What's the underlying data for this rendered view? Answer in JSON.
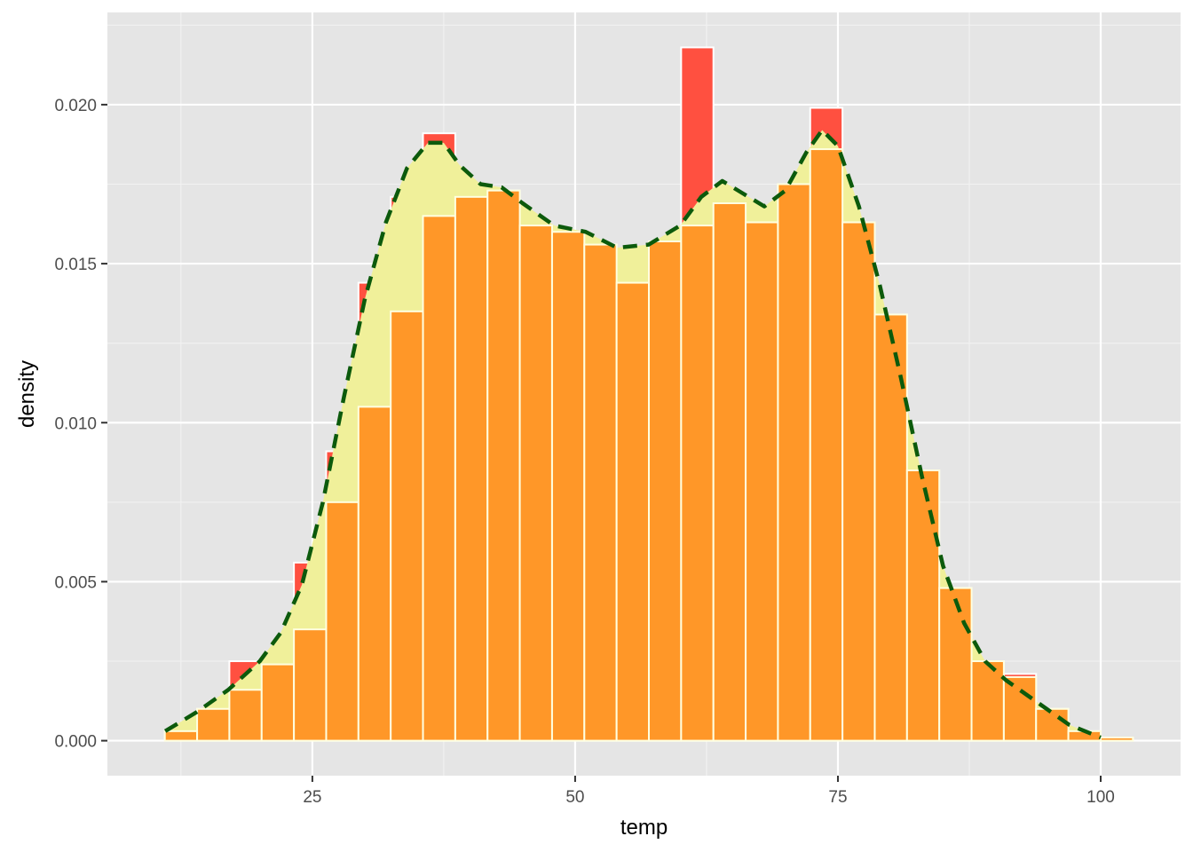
{
  "chart_data": {
    "type": "bar",
    "xlabel": "temp",
    "ylabel": "density",
    "xlim": [
      5.5,
      107.6
    ],
    "ylim": [
      -0.0011,
      0.0229
    ],
    "x_ticks": [
      25,
      50,
      75,
      100
    ],
    "x_tick_labels": [
      "25",
      "50",
      "75",
      "100"
    ],
    "y_ticks": [
      0.0,
      0.005,
      0.01,
      0.015,
      0.02
    ],
    "y_tick_labels": [
      "0.000",
      "0.005",
      "0.010",
      "0.015",
      "0.020"
    ],
    "grid": true,
    "legend": "none",
    "bin_width": 3.07,
    "x_first_bin_center": 12.5,
    "series": [
      {
        "type": "histogram",
        "fill": "#ff5040",
        "outline": "#ffffff",
        "values": [
          0.0003,
          0.001,
          0.0025,
          0.0024,
          0.0056,
          0.0091,
          0.0144,
          0.0171,
          0.0191,
          0.0172,
          0.0173,
          0.0162,
          0.016,
          0.0156,
          0.0144,
          0.0157,
          0.0218,
          0.0169,
          0.0163,
          0.0175,
          0.0199,
          0.0163,
          0.0134,
          0.0085,
          0.0048,
          0.0025,
          0.0021,
          0.001,
          0.0003,
          0.0001
        ]
      },
      {
        "type": "density-area",
        "fill": "#f0f09a",
        "x": [
          11.0,
          14.0,
          17.0,
          20.0,
          22.0,
          24.0,
          26.0,
          28.0,
          30.0,
          32.0,
          34.0,
          36.0,
          37.5,
          39.0,
          41.0,
          43.0,
          45.0,
          48.0,
          51.0,
          54.0,
          57.0,
          60.0,
          62.0,
          64.0,
          66.0,
          68.0,
          70.0,
          72.0,
          73.5,
          75.0,
          77.0,
          79.0,
          81.0,
          83.0,
          85.0,
          87.0,
          89.0,
          91.0,
          94.0,
          97.0,
          100.0
        ],
        "y": [
          0.0003,
          0.0009,
          0.0016,
          0.0025,
          0.0034,
          0.0049,
          0.0075,
          0.0108,
          0.0139,
          0.0163,
          0.018,
          0.0188,
          0.0188,
          0.0181,
          0.0175,
          0.0174,
          0.0169,
          0.0162,
          0.016,
          0.0155,
          0.0156,
          0.0162,
          0.0171,
          0.0176,
          0.0172,
          0.0168,
          0.0173,
          0.0185,
          0.0192,
          0.0187,
          0.0168,
          0.0143,
          0.0114,
          0.0083,
          0.0055,
          0.0037,
          0.0025,
          0.0019,
          0.0012,
          0.0005,
          0.0001
        ]
      },
      {
        "type": "histogram",
        "fill": "#ff9728",
        "outline": "#ffffe0",
        "values": [
          0.0003,
          0.001,
          0.0016,
          0.0024,
          0.0035,
          0.0075,
          0.0105,
          0.0135,
          0.0165,
          0.0171,
          0.0173,
          0.0162,
          0.016,
          0.0156,
          0.0144,
          0.0157,
          0.0162,
          0.0169,
          0.0163,
          0.0175,
          0.0186,
          0.0163,
          0.0134,
          0.0085,
          0.0048,
          0.0025,
          0.002,
          0.001,
          0.0003,
          0.0001
        ]
      },
      {
        "type": "density-line",
        "stroke": "#0c5a0c",
        "style": "dashed",
        "x": [
          11.0,
          14.0,
          17.0,
          20.0,
          22.0,
          24.0,
          26.0,
          28.0,
          30.0,
          32.0,
          34.0,
          36.0,
          37.5,
          39.0,
          41.0,
          43.0,
          45.0,
          48.0,
          51.0,
          54.0,
          57.0,
          60.0,
          62.0,
          64.0,
          66.0,
          68.0,
          70.0,
          72.0,
          73.5,
          75.0,
          77.0,
          79.0,
          81.0,
          83.0,
          85.0,
          87.0,
          89.0,
          91.0,
          94.0,
          97.0,
          100.0
        ],
        "y": [
          0.0003,
          0.0009,
          0.0016,
          0.0025,
          0.0034,
          0.0049,
          0.0075,
          0.0108,
          0.0139,
          0.0163,
          0.018,
          0.0188,
          0.0188,
          0.0181,
          0.0175,
          0.0174,
          0.0169,
          0.0162,
          0.016,
          0.0155,
          0.0156,
          0.0162,
          0.0171,
          0.0176,
          0.0172,
          0.0168,
          0.0173,
          0.0185,
          0.0192,
          0.0187,
          0.0168,
          0.0143,
          0.0114,
          0.0083,
          0.0055,
          0.0037,
          0.0025,
          0.0019,
          0.0012,
          0.0005,
          0.0001
        ]
      }
    ]
  }
}
